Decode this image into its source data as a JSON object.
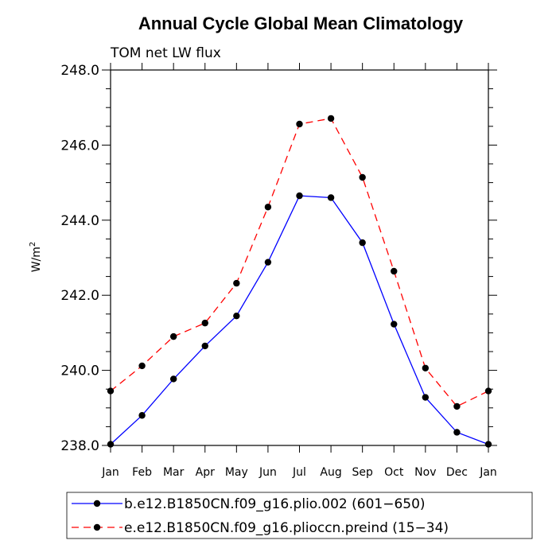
{
  "chart_data": {
    "type": "line",
    "title": "Annual Cycle Global Mean Climatology",
    "subtitle": "TOM net LW flux",
    "ylabel": "W/m",
    "ylabel_superscript": "2",
    "xlabel": "",
    "ylim": [
      238.0,
      248.0
    ],
    "yticks": [
      "238.0",
      "240.0",
      "242.0",
      "244.0",
      "246.0",
      "248.0"
    ],
    "ytick_values": [
      238.0,
      240.0,
      242.0,
      244.0,
      246.0,
      248.0
    ],
    "categories": [
      "Jan",
      "Feb",
      "Mar",
      "Apr",
      "May",
      "Jun",
      "Jul",
      "Aug",
      "Sep",
      "Oct",
      "Nov",
      "Dec",
      "Jan"
    ],
    "series": [
      {
        "name": "b.e12.B1850CN.f09_g16.plio.002 (601−650)",
        "color": "#0000ff",
        "dash": "solid",
        "values": [
          238.03,
          238.8,
          239.77,
          240.65,
          241.45,
          242.88,
          244.65,
          244.6,
          243.4,
          241.23,
          239.28,
          238.35,
          238.03
        ]
      },
      {
        "name": "e.e12.B1850CN.f09_g16.plioccn.preind (15−34)",
        "color": "#ff0000",
        "dash": "dashed",
        "values": [
          239.45,
          240.12,
          240.9,
          241.26,
          242.32,
          244.35,
          246.56,
          246.71,
          245.14,
          242.64,
          240.06,
          239.04,
          239.45
        ]
      }
    ]
  }
}
